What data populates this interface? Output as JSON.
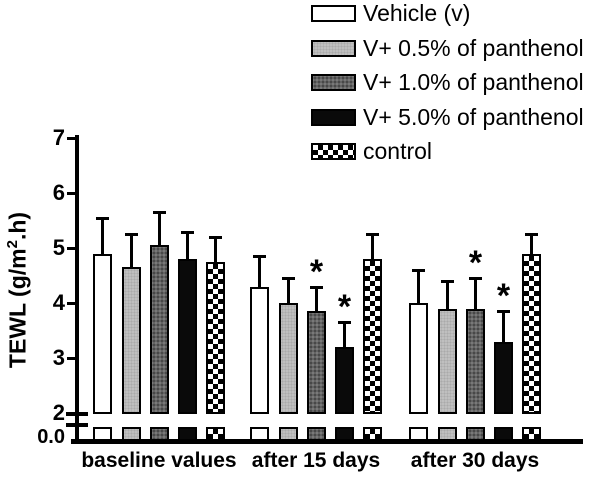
{
  "figure": {
    "y_axis_title": {
      "main": "TEWL (g/m",
      "sup": "2",
      "end": ".h)"
    }
  },
  "colors": {
    "background": "#ffffff",
    "axis": "#000000",
    "bar_white": "#ffffff",
    "bar_lightgray": "#bfbfbf",
    "bar_darkgray": "#636363",
    "bar_black": "#0a0a0a",
    "checker_pattern": "black-white"
  },
  "chart_data": {
    "type": "bar",
    "title": "",
    "xlabel": "",
    "ylabel": "TEWL (g/m².h)",
    "categories": [
      "baseline values",
      "after 15 days",
      "after 30 days"
    ],
    "y_tick_labels": [
      "7",
      "6",
      "5",
      "4",
      "3",
      "2"
    ],
    "y_axis_break_label": "0.0",
    "ylim": [
      0,
      7
    ],
    "y_display_range": [
      2,
      7
    ],
    "axis_break": true,
    "grid": false,
    "legend_position": "top-right",
    "error_bars": "upper only",
    "significance_marker": "*",
    "series": [
      {
        "name": "Vehicle (v)",
        "fill": "white",
        "values": [
          4.9,
          4.3,
          4.0
        ],
        "errors": [
          0.65,
          0.55,
          0.6
        ],
        "significant": [
          false,
          false,
          false
        ]
      },
      {
        "name": "V+ 0.5% of panthenol",
        "fill": "lightgray",
        "values": [
          4.65,
          4.0,
          3.9
        ],
        "errors": [
          0.6,
          0.45,
          0.5
        ],
        "significant": [
          false,
          false,
          false
        ]
      },
      {
        "name": "V+ 1.0% of panthenol",
        "fill": "darkgray",
        "values": [
          5.05,
          3.85,
          3.9
        ],
        "errors": [
          0.6,
          0.45,
          0.55
        ],
        "significant": [
          false,
          true,
          true
        ]
      },
      {
        "name": "V+ 5.0% of panthenol",
        "fill": "black",
        "values": [
          4.8,
          3.2,
          3.3
        ],
        "errors": [
          0.5,
          0.45,
          0.55
        ],
        "significant": [
          false,
          true,
          true
        ]
      },
      {
        "name": "control",
        "fill": "checker",
        "values": [
          4.75,
          4.8,
          4.9
        ],
        "errors": [
          0.45,
          0.45,
          0.35
        ],
        "significant": [
          false,
          false,
          false
        ]
      }
    ]
  }
}
